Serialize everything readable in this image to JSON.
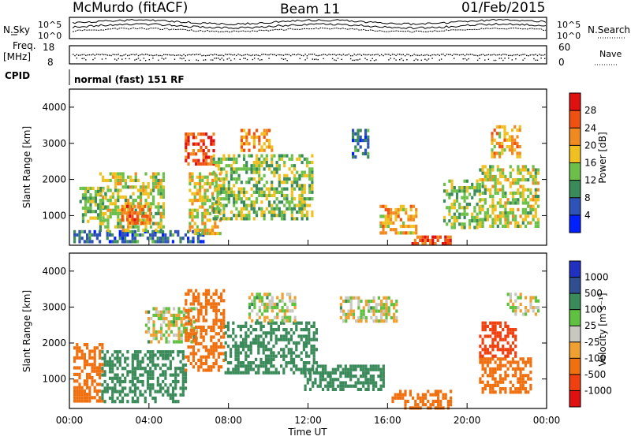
{
  "header": {
    "station": "McMurdo (fitACF)",
    "beam": "Beam 11",
    "date": "01/Feb/2015"
  },
  "info_panels": {
    "nsky_label": "N.Sky",
    "nsky_ticks": [
      "10^5",
      "10^0"
    ],
    "nsearch_label": "N.Search",
    "nsearch_ticks": [
      "10^5",
      "10^0"
    ],
    "freq_label_1": "Freq.",
    "freq_label_2": "[MHz]",
    "freq_ticks": [
      "18",
      "8"
    ],
    "nave_label": "Nave",
    "nave_ticks": [
      "60",
      "0"
    ],
    "cpid_label": "CPID",
    "cpid_value": "normal (fast) 151 RF"
  },
  "colors": {
    "power_scale": [
      "#0020ff",
      "#2f52b8",
      "#3a8a5a",
      "#6cc04a",
      "#f0c020",
      "#f08a20",
      "#f05010",
      "#e01010"
    ],
    "velocity_scale": [
      "#2030c0",
      "#2f4f90",
      "#3a8a5a",
      "#60c040",
      "#c8c8c0",
      "#f0a030",
      "#f07010",
      "#f04010",
      "#e01010"
    ]
  },
  "chart_data": [
    {
      "type": "heatmap",
      "panel": "power",
      "ylabel": "Slant Range [km]",
      "xlim_hours": [
        0,
        24
      ],
      "ylim": [
        180,
        4500
      ],
      "y_ticks": [
        1000,
        2000,
        3000,
        4000
      ],
      "colorbar_label": "Power [dB]",
      "colorbar_ticks": [
        4,
        8,
        12,
        16,
        20,
        24,
        28
      ],
      "colorbar_range": [
        0,
        32
      ],
      "echo_regions": [
        {
          "t0": 0.2,
          "t1": 6.8,
          "r0": 250,
          "r1": 600,
          "level": 8
        },
        {
          "t0": 0.5,
          "t1": 1.8,
          "r0": 800,
          "r1": 1800,
          "level": 14
        },
        {
          "t0": 1.5,
          "t1": 4.8,
          "r0": 600,
          "r1": 2200,
          "level": 16
        },
        {
          "t0": 2.6,
          "t1": 4.0,
          "r0": 800,
          "r1": 1300,
          "level": 24
        },
        {
          "t0": 5.8,
          "t1": 7.2,
          "r0": 2400,
          "r1": 3300,
          "level": 26
        },
        {
          "t0": 6.0,
          "t1": 7.6,
          "r0": 500,
          "r1": 2200,
          "level": 18
        },
        {
          "t0": 7.2,
          "t1": 12.2,
          "r0": 900,
          "r1": 2700,
          "level": 14
        },
        {
          "t0": 8.6,
          "t1": 10.2,
          "r0": 2800,
          "r1": 3400,
          "level": 22
        },
        {
          "t0": 14.2,
          "t1": 15.0,
          "r0": 2500,
          "r1": 3400,
          "level": 8
        },
        {
          "t0": 15.6,
          "t1": 17.4,
          "r0": 500,
          "r1": 1300,
          "level": 20
        },
        {
          "t0": 17.2,
          "t1": 19.2,
          "r0": 200,
          "r1": 450,
          "level": 26
        },
        {
          "t0": 18.8,
          "t1": 20.6,
          "r0": 700,
          "r1": 2000,
          "level": 14
        },
        {
          "t0": 20.6,
          "t1": 23.6,
          "r0": 700,
          "r1": 2400,
          "level": 16
        },
        {
          "t0": 21.2,
          "t1": 22.6,
          "r0": 2600,
          "r1": 3500,
          "level": 20
        }
      ]
    },
    {
      "type": "heatmap",
      "panel": "velocity",
      "ylabel": "Slant Range [km]",
      "xlabel": "Time UT",
      "xlim_hours": [
        0,
        24
      ],
      "x_ticks": [
        "00:00",
        "04:00",
        "08:00",
        "12:00",
        "16:00",
        "20:00",
        "00:00"
      ],
      "ylim": [
        180,
        4500
      ],
      "y_ticks": [
        1000,
        2000,
        3000,
        4000
      ],
      "colorbar_label": "Velocity [m s⁻¹]",
      "colorbar_ticks": [
        "1000",
        "500",
        "100",
        "25",
        "-25",
        "-100",
        "-500",
        "-1000"
      ],
      "echo_regions": [
        {
          "t0": 0.2,
          "t1": 1.6,
          "r0": 400,
          "r1": 2000,
          "level": -300
        },
        {
          "t0": 1.6,
          "t1": 5.8,
          "r0": 400,
          "r1": 1800,
          "level": 300
        },
        {
          "t0": 3.8,
          "t1": 6.4,
          "r0": 2000,
          "r1": 3000,
          "level": 10
        },
        {
          "t0": 5.8,
          "t1": 7.8,
          "r0": 1200,
          "r1": 3500,
          "level": -300
        },
        {
          "t0": 7.8,
          "t1": 12.4,
          "r0": 1200,
          "r1": 2600,
          "level": 300
        },
        {
          "t0": 9.0,
          "t1": 11.4,
          "r0": 2600,
          "r1": 3400,
          "level": 10
        },
        {
          "t0": 11.8,
          "t1": 15.8,
          "r0": 700,
          "r1": 1400,
          "level": 300
        },
        {
          "t0": 13.6,
          "t1": 16.4,
          "r0": 2600,
          "r1": 3300,
          "level": 10
        },
        {
          "t0": 16.2,
          "t1": 19.2,
          "r0": 200,
          "r1": 700,
          "level": -300
        },
        {
          "t0": 20.6,
          "t1": 23.2,
          "r0": 600,
          "r1": 1600,
          "level": -300
        },
        {
          "t0": 20.6,
          "t1": 22.4,
          "r0": 1600,
          "r1": 2600,
          "level": -800
        },
        {
          "t0": 22.0,
          "t1": 23.6,
          "r0": 2800,
          "r1": 3400,
          "level": 10
        }
      ]
    }
  ]
}
